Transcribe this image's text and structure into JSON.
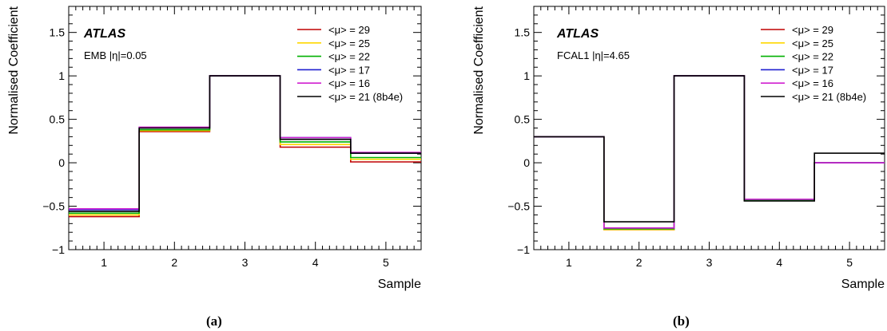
{
  "chart_data": [
    {
      "type": "line",
      "step": true,
      "panel_label": "(a)",
      "experiment": "ATLAS",
      "annotation": "EMB |η|=0.05",
      "xlabel": "Sample",
      "ylabel": "Normalised Coefficient",
      "xlim": [
        0.5,
        5.5
      ],
      "ylim": [
        -1,
        1.8
      ],
      "x": [
        1,
        2,
        3,
        4,
        5
      ],
      "xticks": [
        "1",
        "2",
        "3",
        "4",
        "5"
      ],
      "yticks": [
        "−1",
        "−0.5",
        "0",
        "0.5",
        "1",
        "1.5"
      ],
      "legend_position": "top-right",
      "series": [
        {
          "name": "<μ> = 29",
          "color": "#c00000",
          "values": [
            -0.62,
            0.36,
            1.0,
            0.18,
            0.01
          ]
        },
        {
          "name": "<μ> = 25",
          "color": "#ffd700",
          "values": [
            -0.6,
            0.37,
            1.0,
            0.21,
            0.04
          ]
        },
        {
          "name": "<μ> = 22",
          "color": "#00b000",
          "values": [
            -0.58,
            0.38,
            1.0,
            0.24,
            0.06
          ]
        },
        {
          "name": "<μ> = 17",
          "color": "#2020d0",
          "values": [
            -0.54,
            0.4,
            1.0,
            0.29,
            0.11
          ]
        },
        {
          "name": "<μ> = 16",
          "color": "#d020d0",
          "values": [
            -0.53,
            0.41,
            1.0,
            0.29,
            0.12
          ]
        },
        {
          "name": "<μ> = 21 (8b4e)",
          "color": "#000000",
          "values": [
            -0.56,
            0.4,
            1.0,
            0.27,
            0.11
          ]
        }
      ]
    },
    {
      "type": "line",
      "step": true,
      "panel_label": "(b)",
      "experiment": "ATLAS",
      "annotation": "FCAL1 |η|=4.65",
      "xlabel": "Sample",
      "ylabel": "Normalised Coefficient",
      "xlim": [
        0.5,
        5.5
      ],
      "ylim": [
        -1,
        1.8
      ],
      "x": [
        1,
        2,
        3,
        4,
        5
      ],
      "xticks": [
        "1",
        "2",
        "3",
        "4",
        "5"
      ],
      "yticks": [
        "−1",
        "−0.5",
        "0",
        "0.5",
        "1",
        "1.5"
      ],
      "legend_position": "top-right",
      "series": [
        {
          "name": "<μ> = 29",
          "color": "#c00000",
          "values": [
            0.3,
            -0.77,
            1.0,
            -0.43,
            0.0
          ]
        },
        {
          "name": "<μ> = 25",
          "color": "#ffd700",
          "values": [
            0.3,
            -0.77,
            1.0,
            -0.43,
            0.0
          ]
        },
        {
          "name": "<μ> = 22",
          "color": "#00b000",
          "values": [
            0.3,
            -0.76,
            1.0,
            -0.43,
            0.0
          ]
        },
        {
          "name": "<μ> = 17",
          "color": "#2020d0",
          "values": [
            0.3,
            -0.75,
            1.0,
            -0.42,
            0.0
          ]
        },
        {
          "name": "<μ> = 16",
          "color": "#d020d0",
          "values": [
            0.3,
            -0.75,
            1.0,
            -0.42,
            0.0
          ]
        },
        {
          "name": "<μ> = 21 (8b4e)",
          "color": "#000000",
          "values": [
            0.3,
            -0.68,
            1.0,
            -0.44,
            0.11
          ]
        }
      ]
    }
  ]
}
